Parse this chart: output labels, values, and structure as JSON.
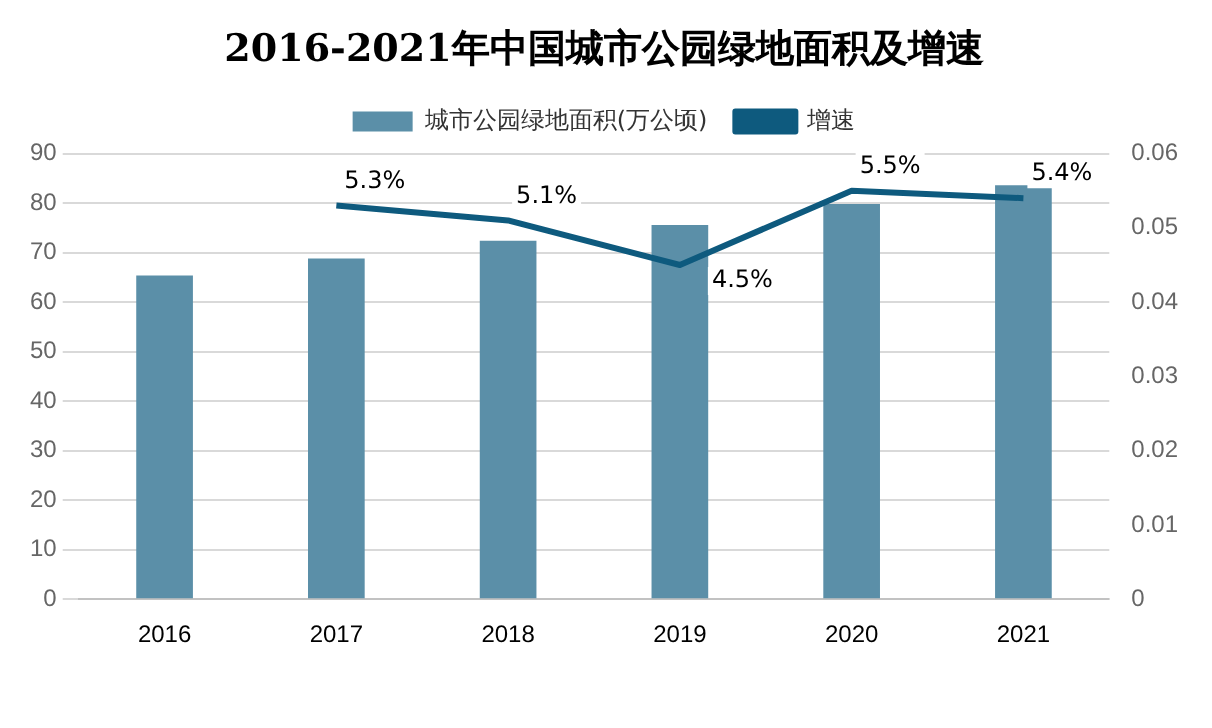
{
  "chart_data": {
    "type": "bar",
    "title": "2016-2021年中国城市公园绿地面积及增速",
    "categories": [
      "2016",
      "2017",
      "2018",
      "2019",
      "2020",
      "2021"
    ],
    "series": [
      {
        "name": "城市公园绿地面积(万公顷)",
        "color": "#5b8fa8",
        "values": [
          65.4,
          68.8,
          72.4,
          75.6,
          79.8,
          83.6
        ]
      },
      {
        "name": "增速",
        "type": "line",
        "axis": "y2",
        "color": "#0e5a7e",
        "values": [
          null,
          0.053,
          0.051,
          0.045,
          0.055,
          0.054
        ],
        "value_labels": [
          null,
          "5.3%",
          "5.1%",
          "4.5%",
          "5.5%",
          "5.4%"
        ]
      }
    ],
    "ylim": [
      0,
      90
    ],
    "yticks": [
      0,
      10,
      20,
      30,
      40,
      50,
      60,
      70,
      80,
      90
    ],
    "y2lim": [
      0,
      0.06
    ],
    "y2ticks": [
      0,
      0.01,
      0.02,
      0.03,
      0.04,
      0.05,
      0.06
    ],
    "grid": "y",
    "legend": "top",
    "marker": "none",
    "line_style": "solid"
  }
}
